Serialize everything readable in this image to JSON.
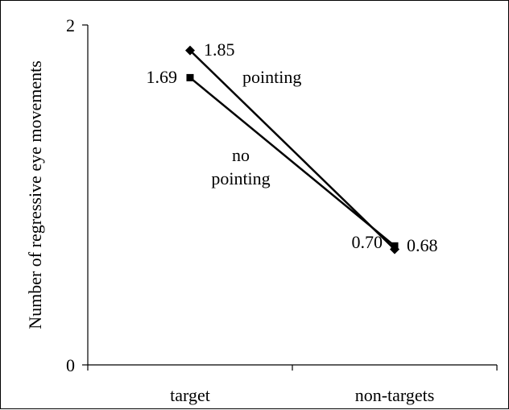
{
  "chart_data": {
    "type": "line",
    "title": "",
    "xlabel": "",
    "ylabel": "Number of regressive eye movements",
    "categories": [
      "target",
      "non-targets"
    ],
    "ylim": [
      0,
      2
    ],
    "y_ticks": [
      "0",
      "2"
    ],
    "grid": false,
    "legend": "none",
    "series": [
      {
        "name": "pointing",
        "marker": "diamond",
        "values": [
          1.85,
          0.68
        ],
        "value_labels": [
          "1.85",
          "0.68"
        ],
        "color": "#000000"
      },
      {
        "name": "no pointing",
        "marker": "square",
        "values": [
          1.69,
          0.7
        ],
        "value_labels": [
          "1.69",
          "0.70"
        ],
        "color": "#000000"
      }
    ],
    "series_annotations": {
      "pointing": "pointing",
      "no_pointing_line1": "no",
      "no_pointing_line2": "pointing"
    }
  }
}
